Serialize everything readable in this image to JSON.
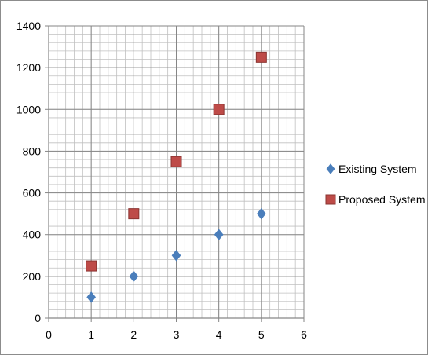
{
  "chart_data": {
    "type": "scatter",
    "title": "",
    "xlabel": "",
    "ylabel": "",
    "xlim": [
      0,
      6
    ],
    "ylim": [
      0,
      1400
    ],
    "x_ticks": [
      "0",
      "1",
      "2",
      "3",
      "4",
      "5",
      "6"
    ],
    "y_ticks": [
      "0",
      "200",
      "400",
      "600",
      "800",
      "1000",
      "1200",
      "1400"
    ],
    "grid": true,
    "legend_position": "right",
    "series": [
      {
        "name": "Existing System",
        "marker": "diamond",
        "color": "#4a7ebb",
        "x": [
          1,
          2,
          3,
          4,
          5
        ],
        "y": [
          100,
          200,
          300,
          400,
          500
        ]
      },
      {
        "name": "Proposed System",
        "marker": "square",
        "color": "#be4b48",
        "x": [
          1,
          2,
          3,
          4,
          5
        ],
        "y": [
          250,
          500,
          750,
          1000,
          1250
        ]
      }
    ]
  }
}
